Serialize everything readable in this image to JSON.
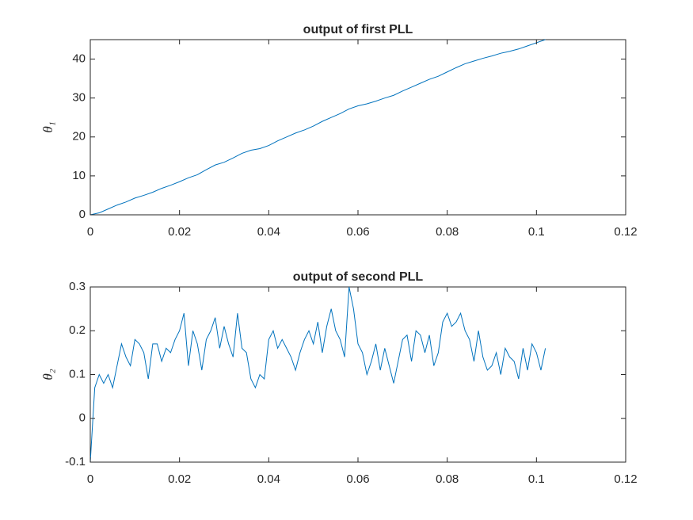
{
  "chart_data": [
    {
      "type": "line",
      "title": "output of first PLL",
      "ylabel": "θ₁",
      "xlim": [
        0,
        0.12
      ],
      "xticks": [
        0,
        0.02,
        0.04,
        0.06,
        0.08,
        0.1,
        0.12
      ],
      "ylim": [
        0,
        45
      ],
      "yticks": [
        0,
        10,
        20,
        30,
        40
      ],
      "color": "#0072bd",
      "x": [
        0,
        0.002,
        0.004,
        0.006,
        0.008,
        0.01,
        0.012,
        0.014,
        0.016,
        0.018,
        0.02,
        0.022,
        0.024,
        0.026,
        0.028,
        0.03,
        0.032,
        0.034,
        0.036,
        0.038,
        0.04,
        0.042,
        0.044,
        0.046,
        0.048,
        0.05,
        0.052,
        0.054,
        0.056,
        0.058,
        0.06,
        0.062,
        0.064,
        0.066,
        0.068,
        0.07,
        0.072,
        0.074,
        0.076,
        0.078,
        0.08,
        0.082,
        0.084,
        0.086,
        0.088,
        0.09,
        0.092,
        0.094,
        0.096,
        0.098,
        0.1,
        0.102
      ],
      "values": [
        0,
        0.5,
        1.5,
        2.5,
        3.3,
        4.3,
        5.0,
        5.8,
        6.8,
        7.6,
        8.5,
        9.5,
        10.3,
        11.6,
        12.8,
        13.5,
        14.6,
        15.8,
        16.6,
        17.0,
        17.8,
        19.0,
        20.0,
        21.0,
        21.8,
        22.8,
        24.0,
        25.0,
        26.0,
        27.2,
        28.0,
        28.5,
        29.2,
        30.0,
        30.7,
        31.8,
        32.8,
        33.8,
        34.8,
        35.6,
        36.7,
        37.8,
        38.8,
        39.5,
        40.2,
        40.8,
        41.5,
        42.0,
        42.6,
        43.4,
        44.2,
        45
      ]
    },
    {
      "type": "line",
      "title": "output of second PLL",
      "ylabel": "θ₂",
      "xlim": [
        0,
        0.12
      ],
      "xticks": [
        0,
        0.02,
        0.04,
        0.06,
        0.08,
        0.1,
        0.12
      ],
      "ylim": [
        -0.1,
        0.3
      ],
      "yticks": [
        -0.1,
        0,
        0.1,
        0.2,
        0.3
      ],
      "color": "#0072bd",
      "x": [
        0,
        0.001,
        0.002,
        0.003,
        0.004,
        0.005,
        0.006,
        0.007,
        0.008,
        0.009,
        0.01,
        0.011,
        0.012,
        0.013,
        0.014,
        0.015,
        0.016,
        0.017,
        0.018,
        0.019,
        0.02,
        0.021,
        0.022,
        0.023,
        0.024,
        0.025,
        0.026,
        0.027,
        0.028,
        0.029,
        0.03,
        0.031,
        0.032,
        0.033,
        0.034,
        0.035,
        0.036,
        0.037,
        0.038,
        0.039,
        0.04,
        0.041,
        0.042,
        0.043,
        0.044,
        0.045,
        0.046,
        0.047,
        0.048,
        0.049,
        0.05,
        0.051,
        0.052,
        0.053,
        0.054,
        0.055,
        0.056,
        0.057,
        0.058,
        0.059,
        0.06,
        0.061,
        0.062,
        0.063,
        0.064,
        0.065,
        0.066,
        0.067,
        0.068,
        0.069,
        0.07,
        0.071,
        0.072,
        0.073,
        0.074,
        0.075,
        0.076,
        0.077,
        0.078,
        0.079,
        0.08,
        0.081,
        0.082,
        0.083,
        0.084,
        0.085,
        0.086,
        0.087,
        0.088,
        0.089,
        0.09,
        0.091,
        0.092,
        0.093,
        0.094,
        0.095,
        0.096,
        0.097,
        0.098,
        0.099,
        0.1,
        0.101,
        0.102
      ],
      "values": [
        -0.1,
        0.07,
        0.1,
        0.08,
        0.1,
        0.07,
        0.12,
        0.17,
        0.14,
        0.12,
        0.18,
        0.17,
        0.15,
        0.09,
        0.17,
        0.17,
        0.13,
        0.16,
        0.15,
        0.18,
        0.2,
        0.24,
        0.12,
        0.2,
        0.17,
        0.11,
        0.18,
        0.2,
        0.23,
        0.16,
        0.21,
        0.17,
        0.14,
        0.24,
        0.16,
        0.15,
        0.09,
        0.07,
        0.1,
        0.09,
        0.18,
        0.2,
        0.16,
        0.18,
        0.16,
        0.14,
        0.11,
        0.15,
        0.18,
        0.2,
        0.17,
        0.22,
        0.15,
        0.21,
        0.25,
        0.2,
        0.18,
        0.14,
        0.3,
        0.25,
        0.17,
        0.15,
        0.1,
        0.13,
        0.17,
        0.11,
        0.16,
        0.12,
        0.08,
        0.13,
        0.18,
        0.19,
        0.13,
        0.2,
        0.19,
        0.15,
        0.19,
        0.12,
        0.15,
        0.22,
        0.24,
        0.21,
        0.22,
        0.24,
        0.2,
        0.18,
        0.13,
        0.2,
        0.14,
        0.11,
        0.12,
        0.15,
        0.1,
        0.16,
        0.14,
        0.13,
        0.09,
        0.16,
        0.11,
        0.17,
        0.15,
        0.11,
        0.16
      ]
    }
  ]
}
